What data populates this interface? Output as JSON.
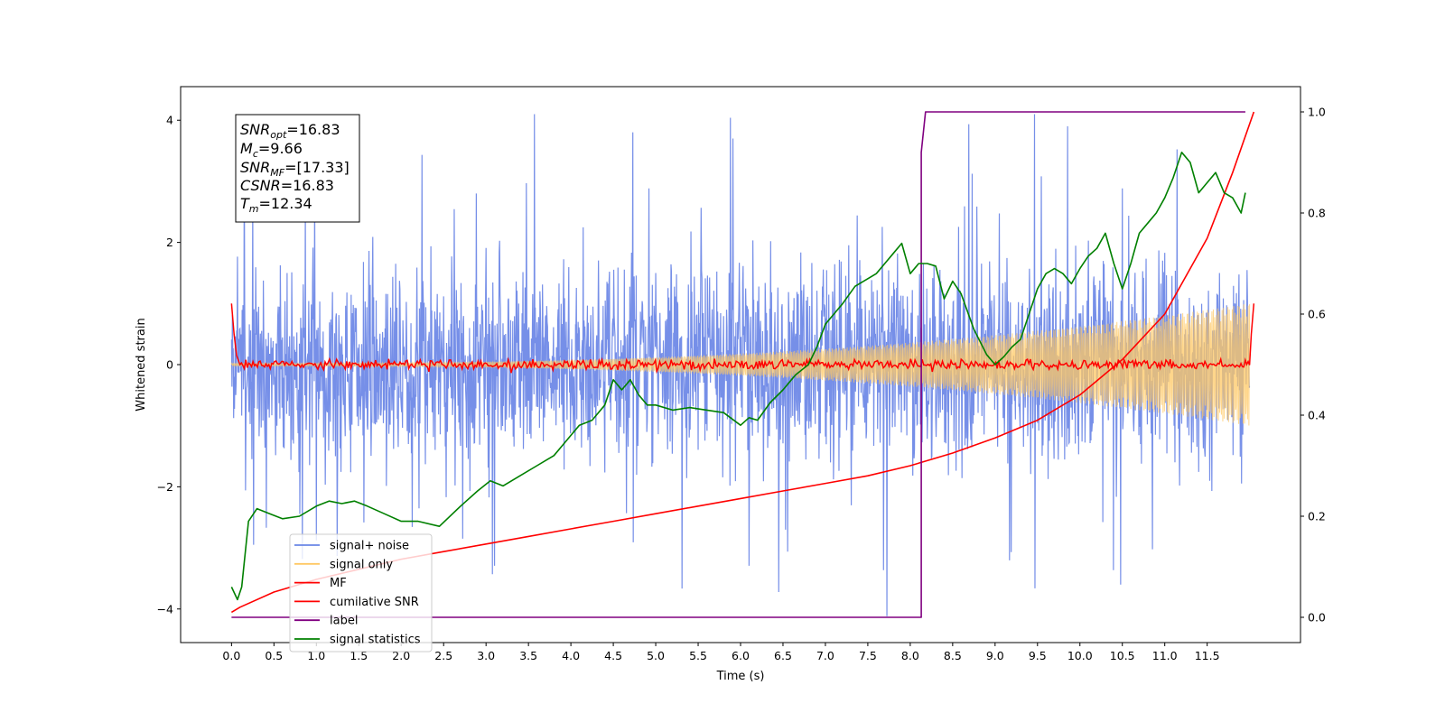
{
  "chart_data": {
    "type": "line",
    "title": "",
    "xlabel": "Time (s)",
    "ylabel": "Whitened strain",
    "xlim": [
      -0.6,
      12.6
    ],
    "ylim": [
      -4.55,
      4.55
    ],
    "y2lim": [
      -0.05,
      1.05
    ],
    "xticks": [
      0.0,
      0.5,
      1.0,
      1.5,
      2.0,
      2.5,
      3.0,
      3.5,
      4.0,
      4.5,
      5.0,
      5.5,
      6.0,
      6.5,
      7.0,
      7.5,
      8.0,
      8.5,
      9.0,
      9.5,
      10.0,
      10.5,
      11.0,
      11.5
    ],
    "xtick_labels": [
      "0.0",
      "0.5",
      "1.0",
      "1.5",
      "2.0",
      "2.5",
      "3.0",
      "3.5",
      "4.0",
      "4.5",
      "5.0",
      "5.5",
      "6.0",
      "6.5",
      "7.0",
      "7.5",
      "8.0",
      "8.5",
      "9.0",
      "9.5",
      "10.0",
      "10.5",
      "11.0",
      "11.5"
    ],
    "yticks": [
      -4,
      -2,
      0,
      2,
      4
    ],
    "ytick_labels": [
      "−4",
      "−2",
      "0",
      "2",
      "4"
    ],
    "y2ticks": [
      0.0,
      0.2,
      0.4,
      0.6,
      0.8,
      1.0
    ],
    "y2tick_labels": [
      "0.0",
      "0.2",
      "0.4",
      "0.6",
      "0.8",
      "1.0"
    ],
    "grid": false,
    "legend_position": "lower-left",
    "legend": [
      {
        "name": "signal+ noise",
        "color": "#6a86e6"
      },
      {
        "name": "signal only",
        "color": "#ffc864"
      },
      {
        "name": "MF",
        "color": "#ff0000"
      },
      {
        "name": "cumilative SNR",
        "color": "#ff0000"
      },
      {
        "name": "label",
        "color": "#800080"
      },
      {
        "name": "signal statistics",
        "color": "#008000"
      }
    ],
    "annotation": {
      "snr_opt": {
        "base": "SNR",
        "sub": "opt",
        "value": "=16.83"
      },
      "mc": {
        "base": "M",
        "sub": "c",
        "value": "=9.66"
      },
      "snr_mf": {
        "base": "SNR",
        "sub": "MF",
        "value": "=[17.33]"
      },
      "csnr": {
        "base": "CSNR",
        "sub": "",
        "value": "=16.83"
      },
      "tm": {
        "base": "T",
        "sub": "m",
        "value": "=12.34"
      }
    },
    "series": [
      {
        "name": "signal+ noise",
        "axis": "left",
        "description": "whitened noisy strain, approx. within ±2.5 with peaks up to ±4.1",
        "envelope": {
          "x": [
            0.0,
            12.0
          ],
          "min": -4.2,
          "max": 4.1
        }
      },
      {
        "name": "signal only",
        "axis": "left",
        "chirp": {
          "x_start": 0.0,
          "x_end": 12.0,
          "amp_start": 0.02,
          "amp_end": 1.0
        }
      },
      {
        "name": "MF",
        "axis": "left",
        "x": [
          0.0,
          0.03,
          0.06,
          0.1,
          12.0,
          12.02,
          12.05
        ],
        "y": [
          1.0,
          0.5,
          0.15,
          0.0,
          0.0,
          0.5,
          1.0
        ],
        "noise_amplitude": 0.06
      },
      {
        "name": "cumilative SNR",
        "axis": "right",
        "x": [
          0.0,
          0.1,
          0.5,
          1.0,
          1.5,
          2.0,
          2.5,
          3.0,
          3.5,
          4.0,
          4.5,
          5.0,
          5.5,
          6.0,
          6.5,
          7.0,
          7.5,
          8.0,
          8.5,
          9.0,
          9.5,
          10.0,
          10.5,
          11.0,
          11.5,
          11.8,
          12.05
        ],
        "y": [
          0.01,
          0.02,
          0.05,
          0.075,
          0.095,
          0.115,
          0.13,
          0.145,
          0.16,
          0.175,
          0.19,
          0.205,
          0.22,
          0.235,
          0.25,
          0.265,
          0.28,
          0.3,
          0.325,
          0.355,
          0.39,
          0.44,
          0.51,
          0.6,
          0.75,
          0.88,
          1.0
        ]
      },
      {
        "name": "label",
        "axis": "right",
        "x": [
          0.0,
          8.13,
          8.13,
          8.18,
          11.95
        ],
        "y": [
          0.0,
          0.0,
          0.92,
          1.0,
          1.0
        ]
      },
      {
        "name": "signal statistics",
        "axis": "right",
        "x": [
          0.0,
          0.07,
          0.12,
          0.2,
          0.3,
          0.45,
          0.6,
          0.8,
          1.0,
          1.15,
          1.3,
          1.45,
          1.6,
          1.8,
          2.0,
          2.2,
          2.45,
          2.7,
          2.9,
          3.05,
          3.2,
          3.4,
          3.6,
          3.8,
          3.95,
          4.1,
          4.25,
          4.4,
          4.5,
          4.6,
          4.7,
          4.8,
          4.9,
          5.0,
          5.2,
          5.4,
          5.6,
          5.8,
          6.0,
          6.1,
          6.2,
          6.35,
          6.5,
          6.65,
          6.8,
          6.9,
          7.0,
          7.1,
          7.2,
          7.35,
          7.5,
          7.6,
          7.7,
          7.8,
          7.9,
          8.0,
          8.1,
          8.2,
          8.3,
          8.4,
          8.5,
          8.6,
          8.75,
          8.9,
          9.0,
          9.1,
          9.2,
          9.3,
          9.4,
          9.5,
          9.6,
          9.7,
          9.8,
          9.9,
          10.0,
          10.1,
          10.2,
          10.3,
          10.4,
          10.5,
          10.6,
          10.7,
          10.8,
          10.9,
          11.0,
          11.1,
          11.2,
          11.3,
          11.4,
          11.5,
          11.6,
          11.7,
          11.8,
          11.9,
          11.95
        ],
        "y": [
          0.06,
          0.035,
          0.06,
          0.19,
          0.215,
          0.205,
          0.195,
          0.2,
          0.22,
          0.23,
          0.225,
          0.23,
          0.22,
          0.205,
          0.19,
          0.19,
          0.18,
          0.22,
          0.25,
          0.27,
          0.26,
          0.28,
          0.3,
          0.32,
          0.35,
          0.38,
          0.39,
          0.42,
          0.47,
          0.45,
          0.47,
          0.44,
          0.42,
          0.42,
          0.41,
          0.415,
          0.41,
          0.405,
          0.38,
          0.395,
          0.39,
          0.425,
          0.45,
          0.48,
          0.5,
          0.535,
          0.58,
          0.6,
          0.62,
          0.655,
          0.67,
          0.68,
          0.7,
          0.72,
          0.74,
          0.68,
          0.7,
          0.7,
          0.695,
          0.63,
          0.665,
          0.64,
          0.57,
          0.52,
          0.5,
          0.515,
          0.535,
          0.55,
          0.6,
          0.65,
          0.68,
          0.69,
          0.68,
          0.66,
          0.69,
          0.715,
          0.73,
          0.76,
          0.7,
          0.65,
          0.7,
          0.76,
          0.78,
          0.8,
          0.83,
          0.87,
          0.92,
          0.9,
          0.84,
          0.86,
          0.88,
          0.84,
          0.83,
          0.8,
          0.84
        ]
      }
    ]
  }
}
